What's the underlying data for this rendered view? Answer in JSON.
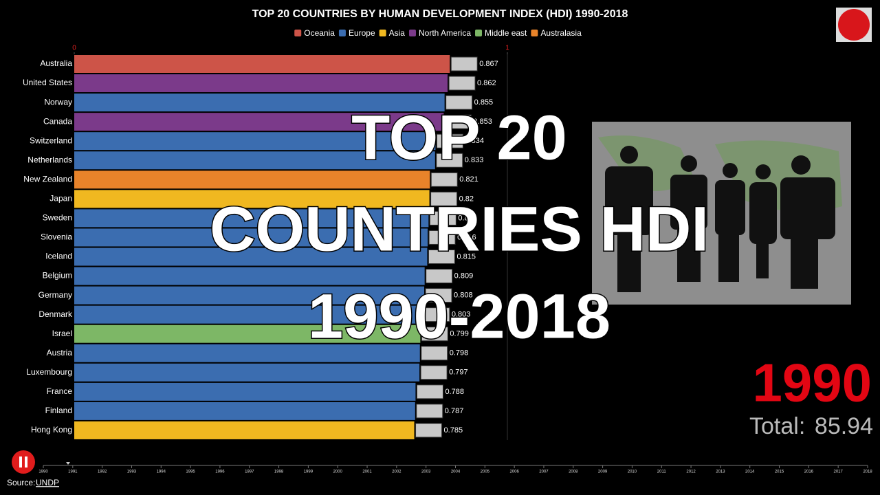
{
  "chart_data": {
    "type": "bar",
    "title": "TOP 20 COUNTRIES BY HUMAN DEVELOPMENT INDEX (HDI) 1990-2018",
    "categories": [
      "Australia",
      "United States",
      "Norway",
      "Canada",
      "Switzerland",
      "Netherlands",
      "New Zealand",
      "Japan",
      "Sweden",
      "Slovenia",
      "Iceland",
      "Belgium",
      "Germany",
      "Denmark",
      "Israel",
      "Austria",
      "Luxembourg",
      "France",
      "Finland",
      "Hong Kong"
    ],
    "series": [
      {
        "name": "Oceania",
        "color": "#cd5448",
        "values": [
          0.867,
          null,
          null,
          null,
          null,
          null,
          null,
          null,
          null,
          null,
          null,
          null,
          null,
          null,
          null,
          null,
          null,
          null,
          null,
          null
        ]
      },
      {
        "name": "Europe",
        "color": "#3b6db0",
        "values": [
          null,
          null,
          0.855,
          null,
          0.834,
          0.833,
          null,
          null,
          0.818,
          0.816,
          0.815,
          0.809,
          0.808,
          0.803,
          null,
          0.798,
          0.797,
          0.788,
          0.787,
          null
        ]
      },
      {
        "name": "Asia",
        "color": "#f0b820",
        "values": [
          null,
          null,
          null,
          null,
          null,
          null,
          null,
          0.82,
          null,
          null,
          null,
          null,
          null,
          null,
          null,
          null,
          null,
          null,
          null,
          0.785
        ]
      },
      {
        "name": "North America",
        "color": "#7b3a8a",
        "values": [
          null,
          0.862,
          null,
          0.853,
          null,
          null,
          null,
          null,
          null,
          null,
          null,
          null,
          null,
          null,
          null,
          null,
          null,
          null,
          null,
          null
        ]
      },
      {
        "name": "Middle east",
        "color": "#7db766",
        "values": [
          null,
          null,
          null,
          null,
          null,
          null,
          null,
          null,
          null,
          null,
          null,
          null,
          null,
          null,
          0.799,
          null,
          null,
          null,
          null,
          null
        ]
      },
      {
        "name": "Australasia",
        "color": "#e8832a",
        "values": [
          null,
          null,
          null,
          null,
          null,
          null,
          0.821,
          null,
          null,
          null,
          null,
          null,
          null,
          null,
          null,
          null,
          null,
          null,
          null,
          null
        ]
      }
    ],
    "xlim": [
      0,
      1
    ],
    "xticks": [
      0,
      1
    ],
    "year": 1990,
    "total_label": "Total:",
    "total": 85.94,
    "timeline": [
      1990,
      1991,
      1992,
      1993,
      1994,
      1995,
      1996,
      1997,
      1998,
      1999,
      2000,
      2001,
      2002,
      2003,
      2004,
      2005,
      2006,
      2007,
      2008,
      2009,
      2010,
      2011,
      2012,
      2013,
      2014,
      2015,
      2016,
      2017,
      2018
    ],
    "source_label": "Source:",
    "source": "UNDP",
    "overlay": [
      "TOP 20",
      "COUNTRIES HDI",
      "1990-2018"
    ]
  }
}
